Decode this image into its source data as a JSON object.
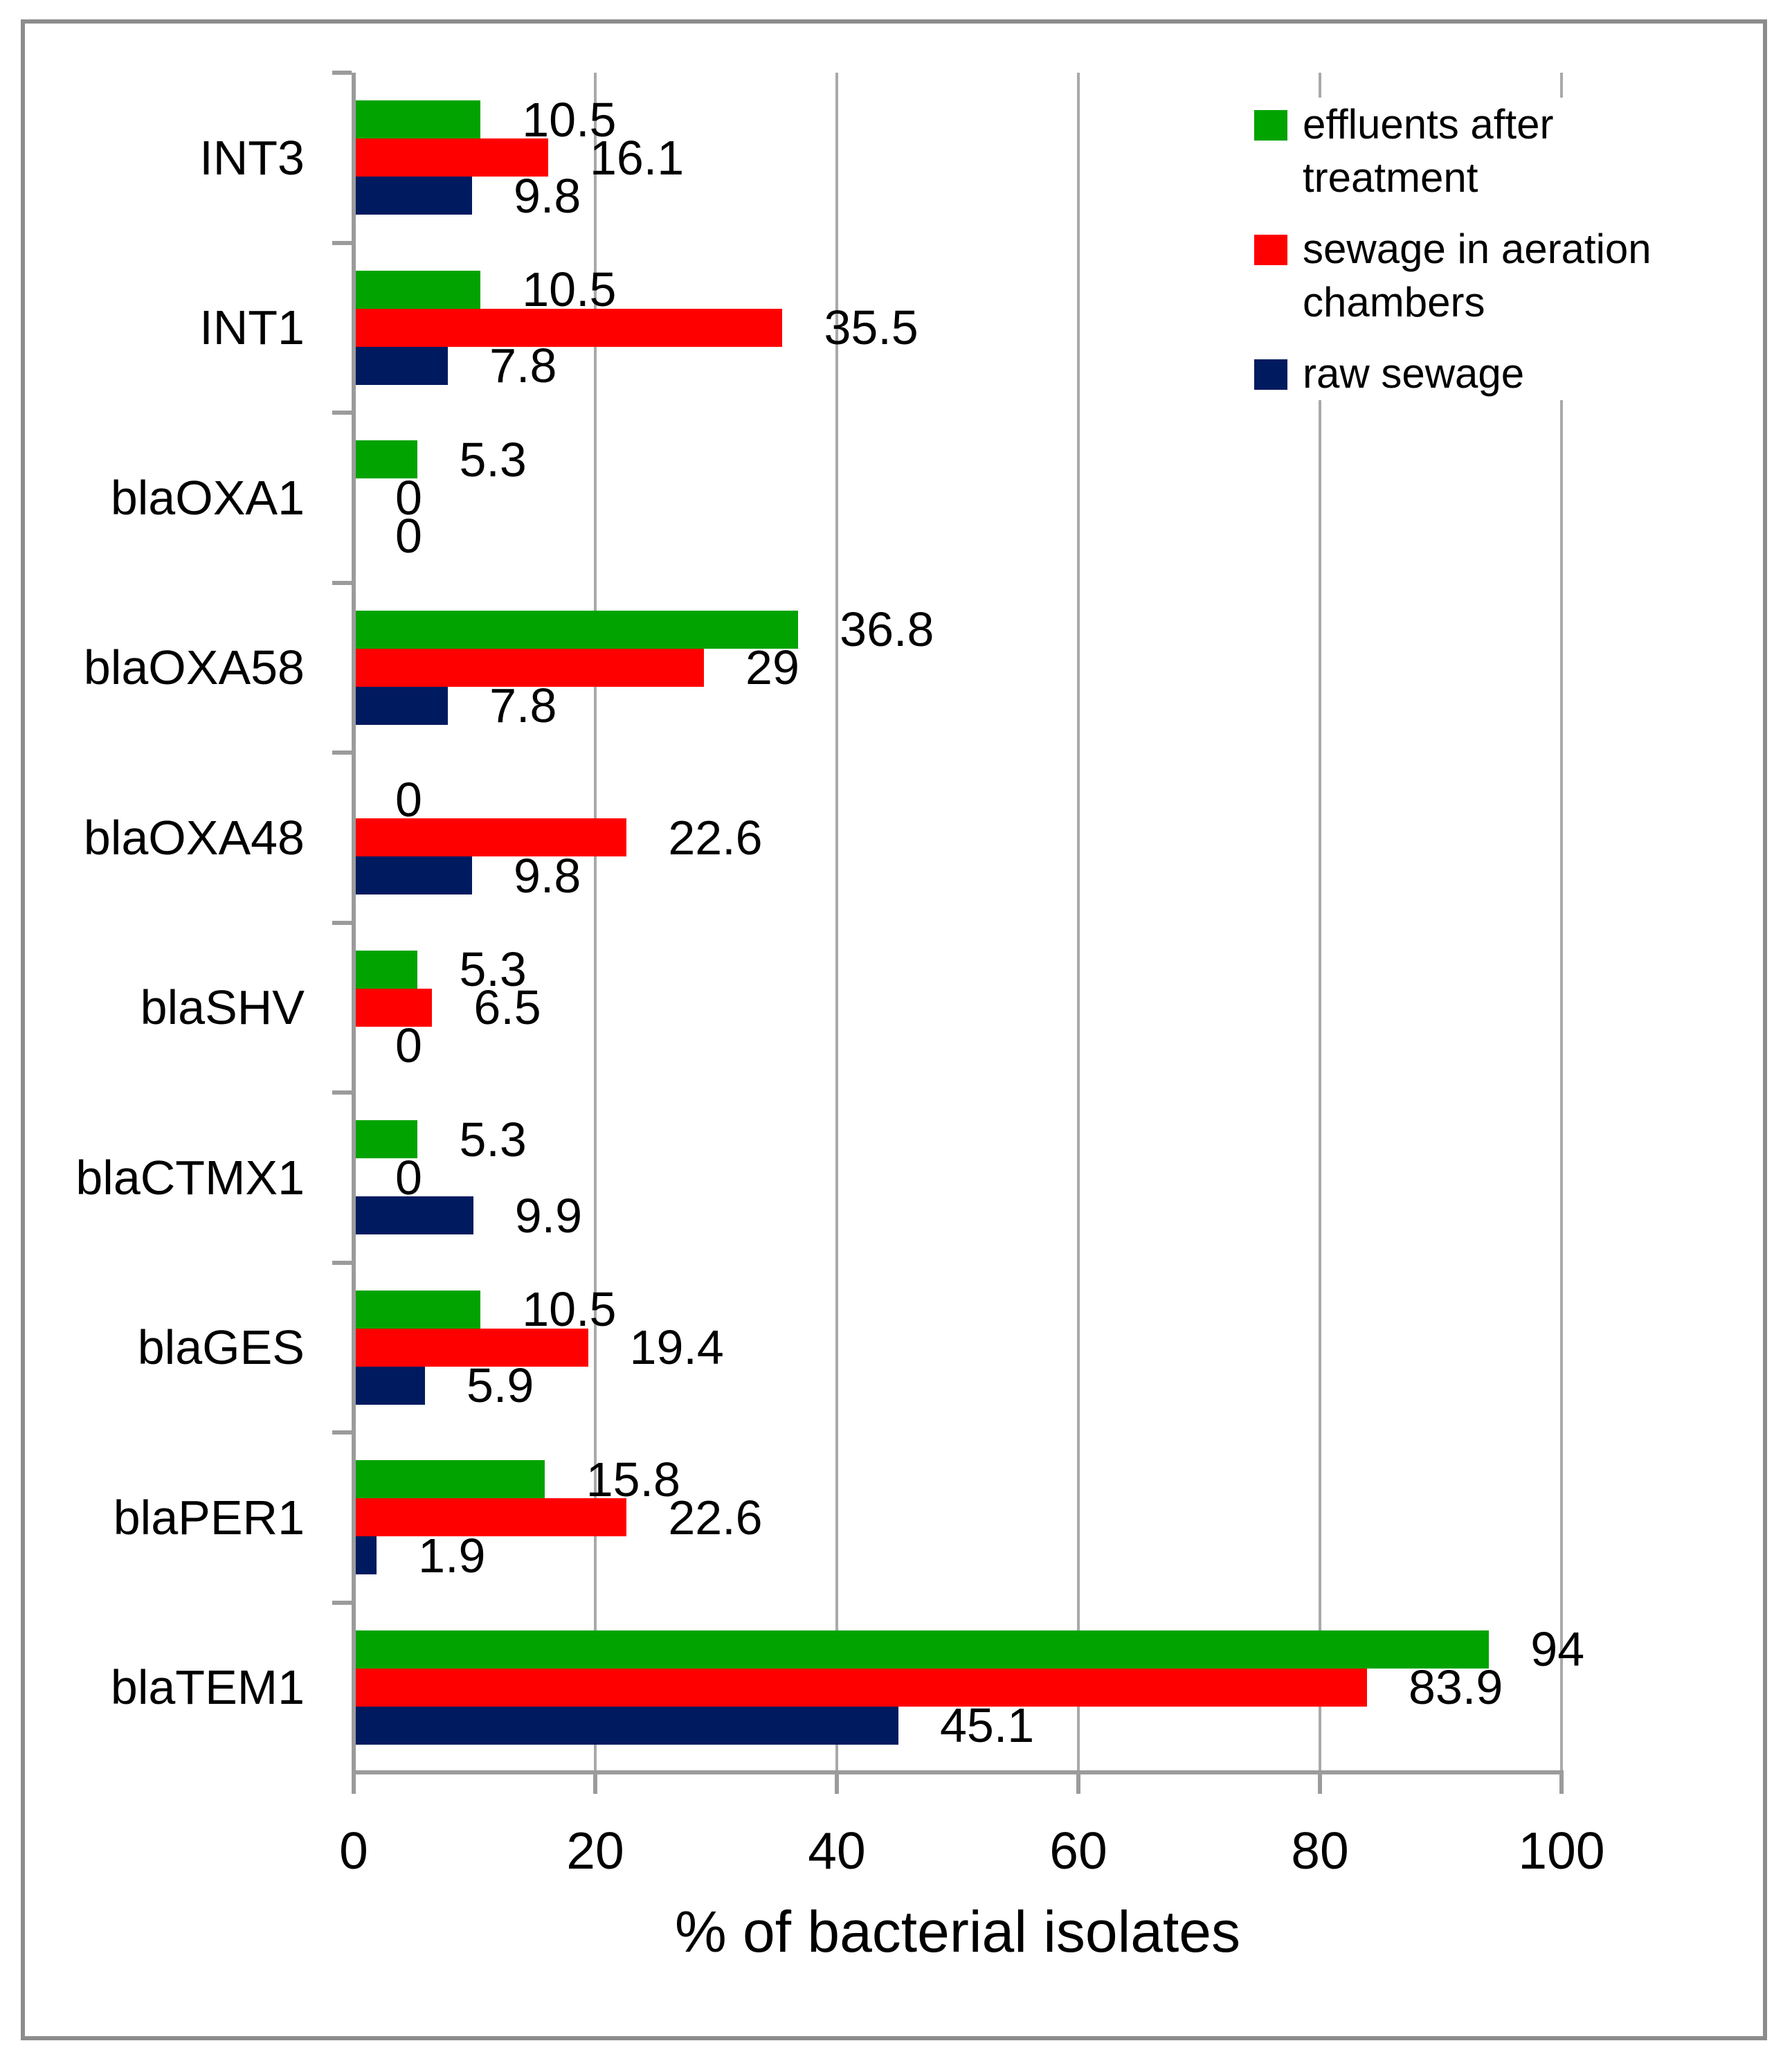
{
  "chart_data": {
    "type": "bar",
    "orientation": "horizontal",
    "xlabel": "% of bacterial isolates",
    "categories": [
      "INT3",
      "INT1",
      "blaOXA1",
      "blaOXA58",
      "blaOXA48",
      "blaSHV",
      "blaCTMX1",
      "blaGES",
      "blaPER1",
      "blaTEM1"
    ],
    "series": [
      {
        "name": "effluents after treatment",
        "color": "#00A300",
        "values": [
          10.5,
          10.5,
          5.3,
          36.8,
          0,
          5.3,
          5.3,
          10.5,
          15.8,
          94
        ]
      },
      {
        "name": "sewage in aeration chambers",
        "color": "#FF0000",
        "values": [
          16.1,
          35.5,
          0,
          29,
          22.6,
          6.5,
          0,
          19.4,
          22.6,
          83.9
        ]
      },
      {
        "name": "raw sewage",
        "color": "#001A60",
        "values": [
          9.8,
          7.8,
          0,
          7.8,
          9.8,
          0,
          9.9,
          5.9,
          1.9,
          45.1
        ]
      }
    ],
    "xticks": [
      0,
      20,
      40,
      60,
      80,
      100
    ],
    "xlim": [
      0,
      116.7
    ],
    "grid": true,
    "legend_position": "top-right",
    "bar_labels": true
  },
  "styles": {
    "grid_color": "#A9A9A9",
    "axis_color": "#9B9B9B",
    "figure_border_color": "#8C8C8C",
    "text_color": "#000000",
    "background": "#FFFFFF"
  }
}
